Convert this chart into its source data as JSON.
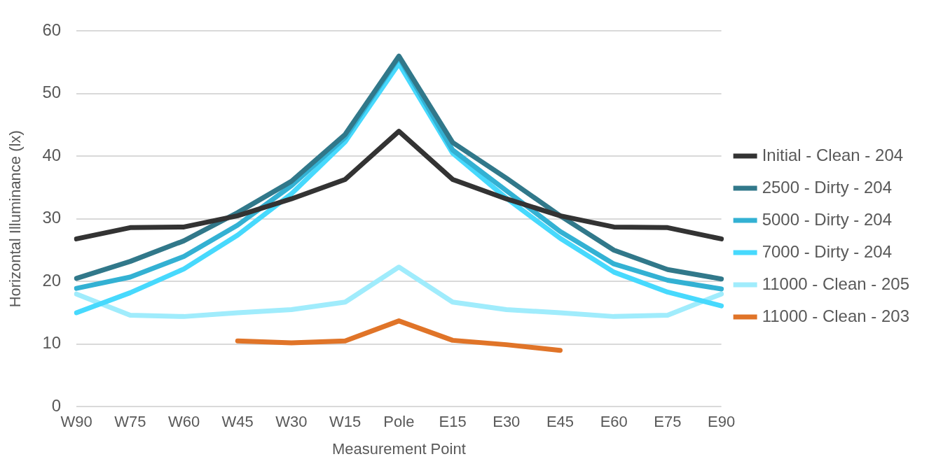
{
  "chart_data": {
    "type": "line",
    "xlabel": "Measurement Point",
    "ylabel": "Horizontal Illuminance (lx)",
    "categories": [
      "W90",
      "W75",
      "W60",
      "W45",
      "W30",
      "W15",
      "Pole",
      "E15",
      "E30",
      "E45",
      "E60",
      "E75",
      "E90"
    ],
    "series": [
      {
        "name": "Initial - Clean - 204",
        "color": "#333333",
        "values": [
          26.8,
          28.6,
          28.7,
          30.5,
          33.2,
          36.3,
          44,
          36.3,
          33.2,
          30.5,
          28.7,
          28.6,
          26.8
        ]
      },
      {
        "name": "2500 - Dirty - 204",
        "color": "#31788a",
        "values": [
          20.5,
          23.2,
          26.5,
          31,
          36,
          43.5,
          56,
          42.2,
          36.5,
          30.5,
          25,
          21.9,
          20.4
        ]
      },
      {
        "name": "5000 - Dirty - 204",
        "color": "#33b1d3",
        "values": [
          18.9,
          20.7,
          24,
          29,
          35.3,
          43,
          55.8,
          41,
          34.5,
          28,
          22.8,
          20.2,
          18.8
        ]
      },
      {
        "name": "7000 - Dirty - 204",
        "color": "#47d9fd",
        "values": [
          15,
          18.2,
          22,
          27.4,
          34,
          42.3,
          54.8,
          40.5,
          33.3,
          26.9,
          21.5,
          18.3,
          16.1
        ]
      },
      {
        "name": "11000 - Clean - 205",
        "color": "#a0ecfc",
        "values": [
          18,
          14.6,
          14.4,
          15,
          15.5,
          16.7,
          22.3,
          16.7,
          15.5,
          15,
          14.4,
          14.6,
          18
        ]
      },
      {
        "name": "11000 - Clean - 203",
        "color": "#e07428",
        "values": [
          null,
          null,
          null,
          10.5,
          10.2,
          10.5,
          13.7,
          10.6,
          9.9,
          9,
          null,
          null,
          null
        ]
      }
    ],
    "ylim": [
      0,
      60
    ],
    "yticks": [
      0,
      10,
      20,
      30,
      40,
      50,
      60
    ],
    "grid": "y",
    "legend": "right",
    "marker": "none",
    "line_style": "solid"
  }
}
